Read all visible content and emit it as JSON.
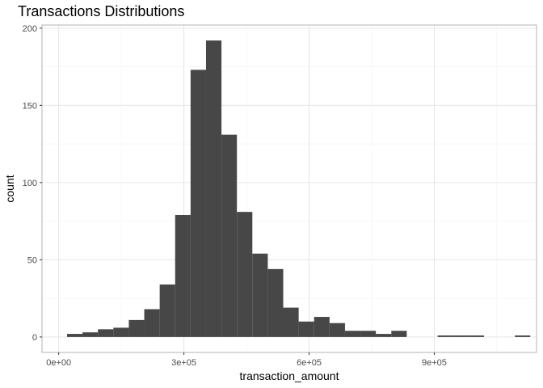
{
  "chart_data": {
    "type": "bar",
    "subtype": "histogram",
    "title": "Transactions Distributions",
    "xlabel": "transaction_amount",
    "ylabel": "count",
    "xlim": [
      -40000,
      1145000
    ],
    "ylim": [
      -10,
      202
    ],
    "x_ticks": [
      {
        "value": 0,
        "label": "0e+00"
      },
      {
        "value": 300000,
        "label": "3e+05"
      },
      {
        "value": 600000,
        "label": "6e+05"
      },
      {
        "value": 900000,
        "label": "9e+05"
      }
    ],
    "y_ticks": [
      {
        "value": 0,
        "label": "0"
      },
      {
        "value": 50,
        "label": "50"
      },
      {
        "value": 100,
        "label": "100"
      },
      {
        "value": 150,
        "label": "150"
      },
      {
        "value": 200,
        "label": "200"
      }
    ],
    "bin_width": 37000,
    "bins": [
      {
        "start": 20000,
        "count": 2
      },
      {
        "start": 57000,
        "count": 3
      },
      {
        "start": 94000,
        "count": 5
      },
      {
        "start": 131000,
        "count": 6
      },
      {
        "start": 168000,
        "count": 11
      },
      {
        "start": 205000,
        "count": 18
      },
      {
        "start": 242000,
        "count": 34
      },
      {
        "start": 279000,
        "count": 79
      },
      {
        "start": 316000,
        "count": 173
      },
      {
        "start": 353000,
        "count": 192
      },
      {
        "start": 390000,
        "count": 131
      },
      {
        "start": 427000,
        "count": 81
      },
      {
        "start": 464000,
        "count": 54
      },
      {
        "start": 501000,
        "count": 44
      },
      {
        "start": 538000,
        "count": 19
      },
      {
        "start": 575000,
        "count": 10
      },
      {
        "start": 612000,
        "count": 13
      },
      {
        "start": 649000,
        "count": 9
      },
      {
        "start": 686000,
        "count": 4
      },
      {
        "start": 723000,
        "count": 4
      },
      {
        "start": 760000,
        "count": 2
      },
      {
        "start": 797000,
        "count": 4
      },
      {
        "start": 834000,
        "count": 0
      },
      {
        "start": 871000,
        "count": 0
      },
      {
        "start": 908000,
        "count": 1
      },
      {
        "start": 945000,
        "count": 1
      },
      {
        "start": 982000,
        "count": 1
      },
      {
        "start": 1019000,
        "count": 0
      },
      {
        "start": 1056000,
        "count": 0
      },
      {
        "start": 1093000,
        "count": 1
      }
    ],
    "bar_color": "#474747",
    "panel_border_color": "#b3b3b3",
    "grid": true,
    "grid_major_color": "#e6e6e6",
    "grid_minor_color": "#f2f2f2",
    "background": "#ffffff",
    "legend": "none"
  }
}
